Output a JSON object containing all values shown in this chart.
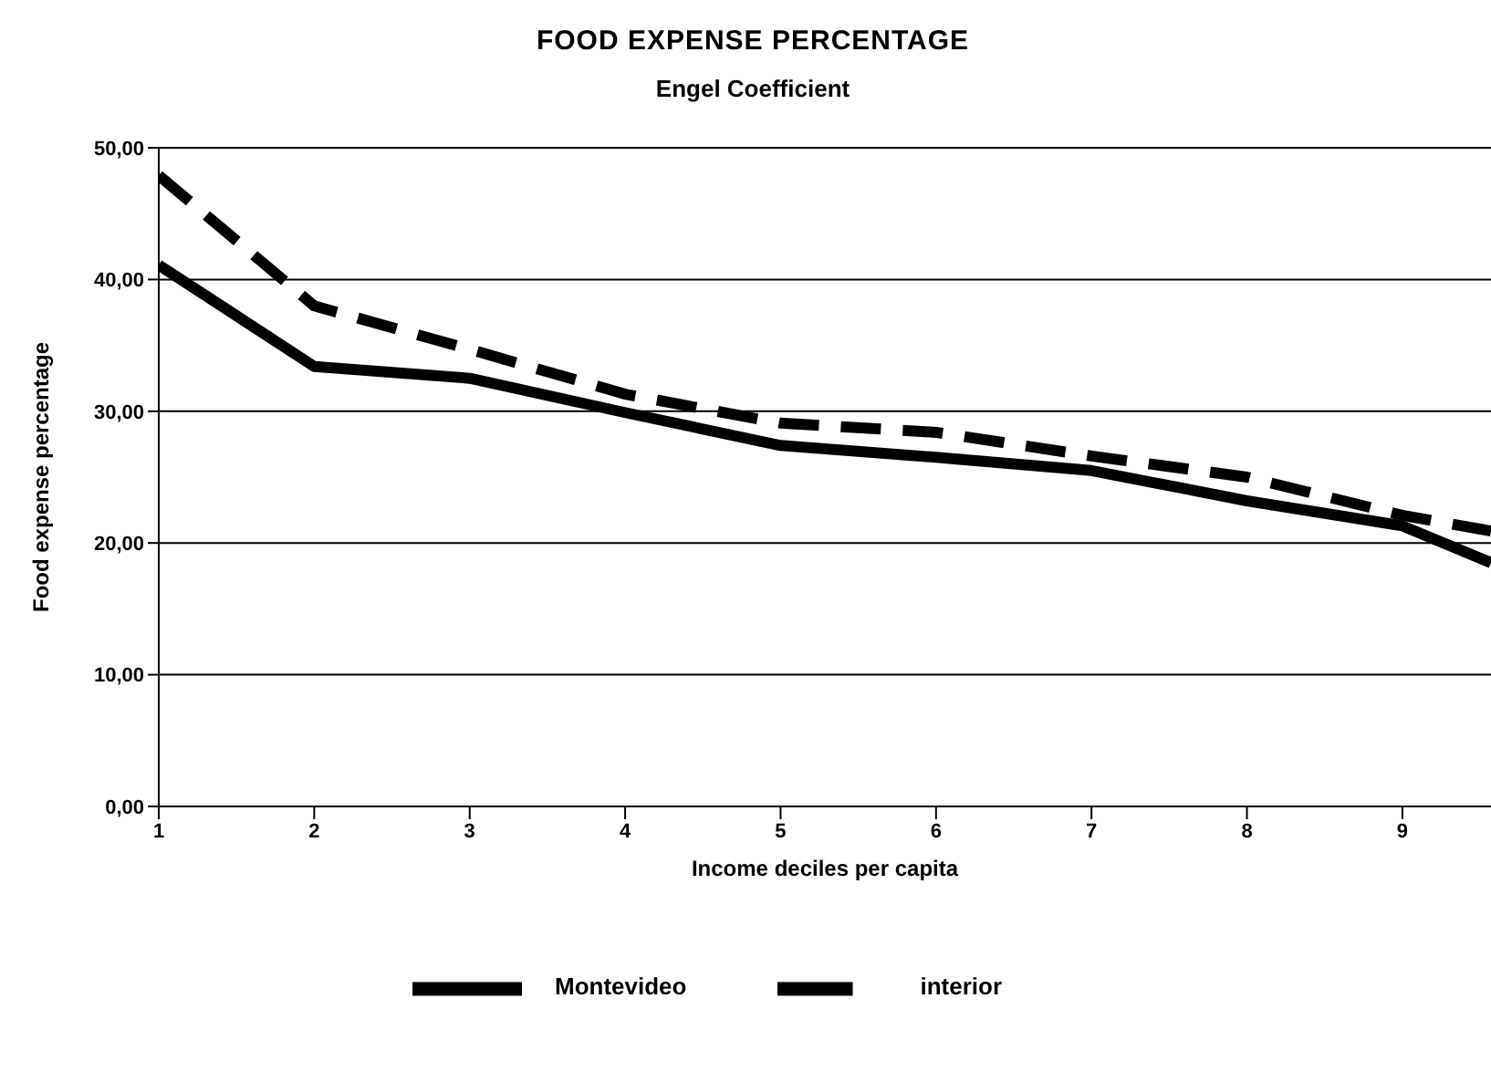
{
  "chart_data": {
    "type": "line",
    "title": "FOOD EXPENSE PERCENTAGE",
    "subtitle": "Engel Coefficient",
    "xlabel": "Income deciles per capita",
    "ylabel": "Food expense percentage",
    "x": [
      1,
      2,
      3,
      4,
      5,
      6,
      7,
      8,
      9,
      9.57
    ],
    "series": [
      {
        "name": "Montevideo",
        "color": "#000000",
        "line_style": "solid",
        "values": [
          41.1,
          33.4,
          32.5,
          29.9,
          27.4,
          26.5,
          25.5,
          23.2,
          21.3,
          18.5
        ]
      },
      {
        "name": "interior",
        "color": "#000000",
        "line_style": "dashed",
        "values": [
          47.9,
          38.0,
          34.7,
          31.3,
          29.1,
          28.4,
          26.6,
          25.0,
          22.1,
          20.9
        ]
      }
    ],
    "xlim": [
      1,
      9.57
    ],
    "xticks": [
      1,
      2,
      3,
      4,
      5,
      6,
      7,
      8,
      9
    ],
    "ylim": [
      0,
      50
    ],
    "yticks": [
      {
        "value": 0,
        "label": "0,00"
      },
      {
        "value": 10,
        "label": "10,00"
      },
      {
        "value": 20,
        "label": "20,00"
      },
      {
        "value": 30,
        "label": "30,00"
      },
      {
        "value": 40,
        "label": "40,00"
      },
      {
        "value": 50,
        "label": "50,00"
      }
    ],
    "grid": "y",
    "legend": "bottom",
    "marker": "none"
  }
}
